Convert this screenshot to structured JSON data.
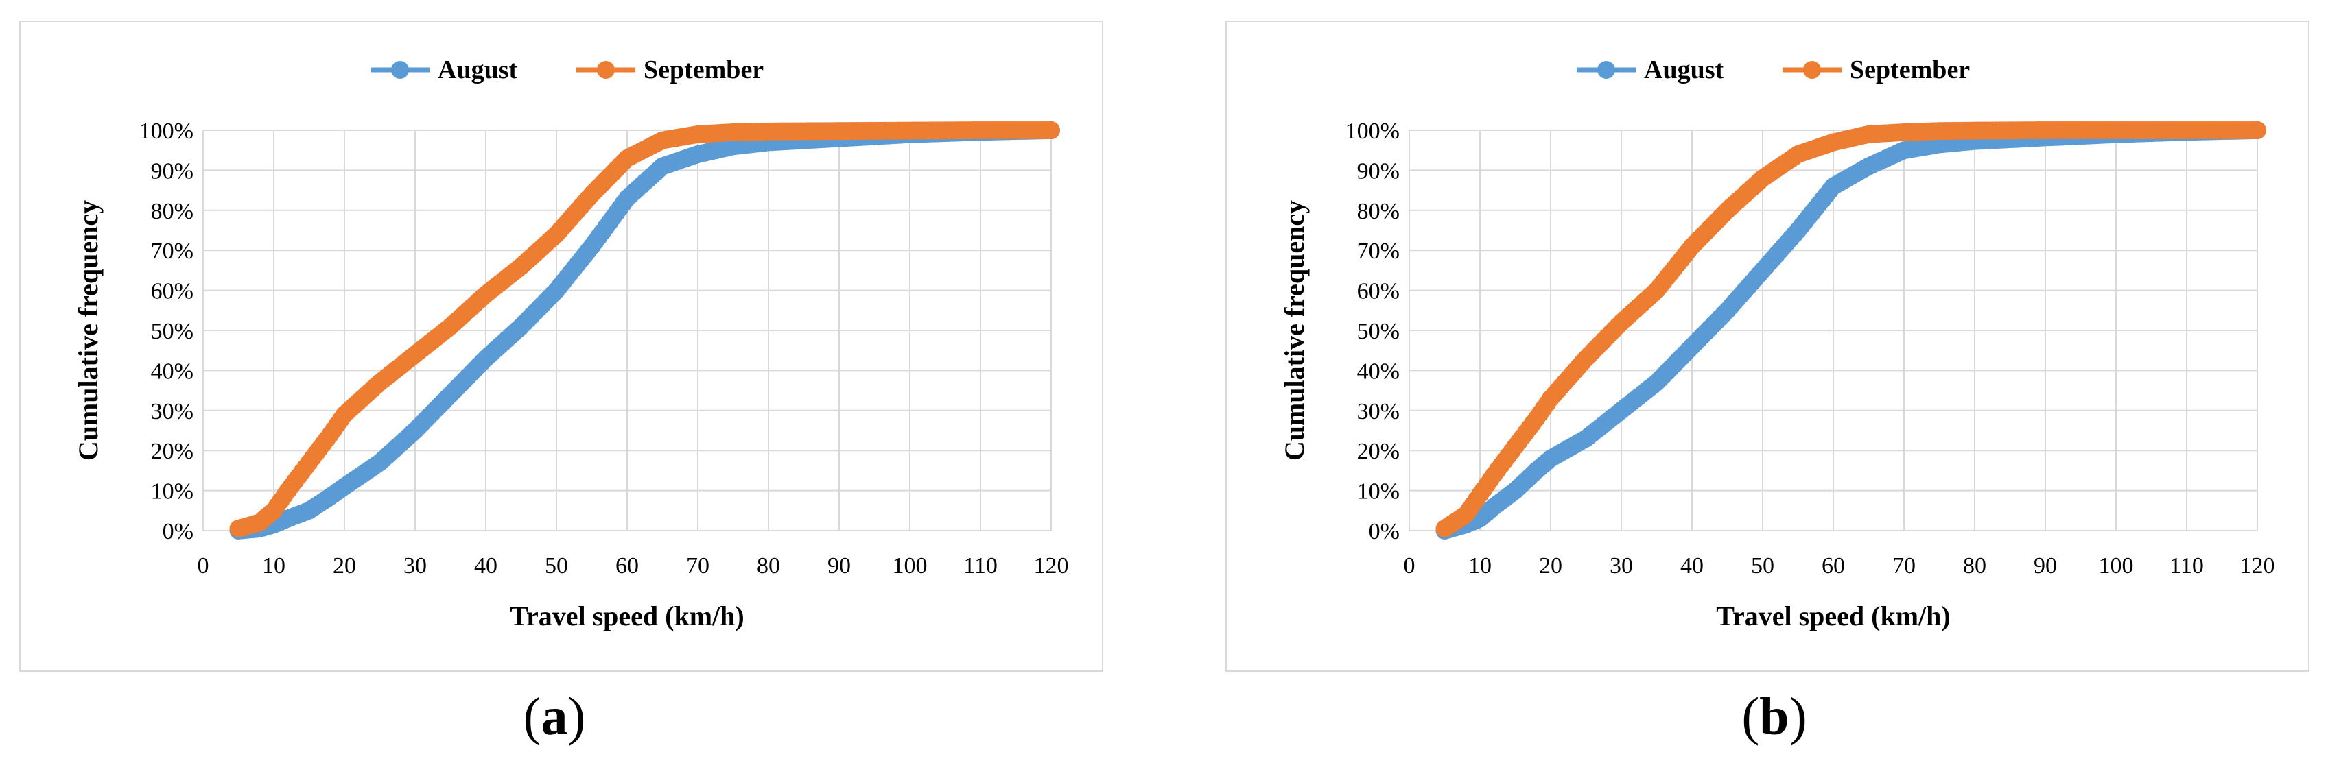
{
  "colors": {
    "august": "#5b9bd5",
    "september": "#ed7d31",
    "grid": "#d9d9d9",
    "axis": "#000000"
  },
  "captions": [
    {
      "open": "(",
      "letter": "a",
      "close": ")"
    },
    {
      "open": "(",
      "letter": "b",
      "close": ")"
    }
  ],
  "chart_data": [
    {
      "type": "scatter",
      "panel": "a",
      "xlabel": "Travel speed (km/h)",
      "ylabel": "Cumulative frequency",
      "xlim": [
        0,
        120
      ],
      "ylim": [
        0,
        100
      ],
      "x_ticks": [
        0,
        10,
        20,
        30,
        40,
        50,
        60,
        70,
        80,
        90,
        100,
        110,
        120
      ],
      "y_ticks": [
        0,
        10,
        20,
        30,
        40,
        50,
        60,
        70,
        80,
        90,
        100
      ],
      "y_tick_suffix": "%",
      "legend_position": "top-center",
      "grid": true,
      "series": [
        {
          "name": "August",
          "color": "#5b9bd5",
          "points": [
            [
              5,
              0
            ],
            [
              8,
              0.5
            ],
            [
              10,
              1.5
            ],
            [
              12,
              3
            ],
            [
              15,
              5
            ],
            [
              18,
              8.5
            ],
            [
              20,
              11
            ],
            [
              25,
              17
            ],
            [
              30,
              25
            ],
            [
              35,
              34
            ],
            [
              40,
              43
            ],
            [
              45,
              51
            ],
            [
              50,
              60
            ],
            [
              55,
              71
            ],
            [
              60,
              83
            ],
            [
              65,
              91
            ],
            [
              70,
              94
            ],
            [
              75,
              96
            ],
            [
              80,
              97
            ],
            [
              85,
              97.5
            ],
            [
              90,
              98
            ],
            [
              95,
              98.5
            ],
            [
              100,
              99
            ],
            [
              110,
              99.6
            ],
            [
              120,
              100
            ]
          ]
        },
        {
          "name": "September",
          "color": "#ed7d31",
          "points": [
            [
              5,
              0.5
            ],
            [
              8,
              2
            ],
            [
              10,
              5
            ],
            [
              12,
              10
            ],
            [
              15,
              17
            ],
            [
              18,
              24
            ],
            [
              20,
              29
            ],
            [
              25,
              37
            ],
            [
              30,
              44
            ],
            [
              35,
              51
            ],
            [
              40,
              59
            ],
            [
              45,
              66
            ],
            [
              50,
              74
            ],
            [
              55,
              84
            ],
            [
              60,
              93
            ],
            [
              65,
              97.5
            ],
            [
              70,
              99
            ],
            [
              75,
              99.5
            ],
            [
              80,
              99.7
            ],
            [
              90,
              99.8
            ],
            [
              100,
              99.9
            ],
            [
              110,
              100
            ],
            [
              120,
              100
            ]
          ]
        }
      ]
    },
    {
      "type": "scatter",
      "panel": "b",
      "xlabel": "Travel speed (km/h)",
      "ylabel": "Cumulative frequency",
      "xlim": [
        0,
        120
      ],
      "ylim": [
        0,
        100
      ],
      "x_ticks": [
        0,
        10,
        20,
        30,
        40,
        50,
        60,
        70,
        80,
        90,
        100,
        110,
        120
      ],
      "y_ticks": [
        0,
        10,
        20,
        30,
        40,
        50,
        60,
        70,
        80,
        90,
        100
      ],
      "y_tick_suffix": "%",
      "legend_position": "top-center",
      "grid": true,
      "series": [
        {
          "name": "August",
          "color": "#5b9bd5",
          "points": [
            [
              5,
              0
            ],
            [
              8,
              1.5
            ],
            [
              10,
              3
            ],
            [
              12,
              6
            ],
            [
              15,
              10
            ],
            [
              18,
              15
            ],
            [
              20,
              18
            ],
            [
              25,
              23
            ],
            [
              30,
              30
            ],
            [
              35,
              37
            ],
            [
              40,
              46
            ],
            [
              45,
              55
            ],
            [
              50,
              65
            ],
            [
              55,
              75
            ],
            [
              60,
              86
            ],
            [
              65,
              91
            ],
            [
              70,
              95
            ],
            [
              75,
              96.5
            ],
            [
              80,
              97.3
            ],
            [
              90,
              98.2
            ],
            [
              100,
              99
            ],
            [
              110,
              99.6
            ],
            [
              120,
              100
            ]
          ]
        },
        {
          "name": "September",
          "color": "#ed7d31",
          "points": [
            [
              5,
              0.5
            ],
            [
              8,
              4
            ],
            [
              10,
              9
            ],
            [
              12,
              14
            ],
            [
              15,
              21
            ],
            [
              18,
              28
            ],
            [
              20,
              33
            ],
            [
              25,
              43
            ],
            [
              30,
              52
            ],
            [
              35,
              60
            ],
            [
              40,
              71
            ],
            [
              45,
              80
            ],
            [
              50,
              88
            ],
            [
              55,
              94
            ],
            [
              60,
              97
            ],
            [
              65,
              99
            ],
            [
              70,
              99.5
            ],
            [
              75,
              99.8
            ],
            [
              80,
              99.9
            ],
            [
              90,
              100
            ],
            [
              100,
              100
            ],
            [
              110,
              100
            ],
            [
              120,
              100
            ]
          ]
        }
      ]
    }
  ]
}
